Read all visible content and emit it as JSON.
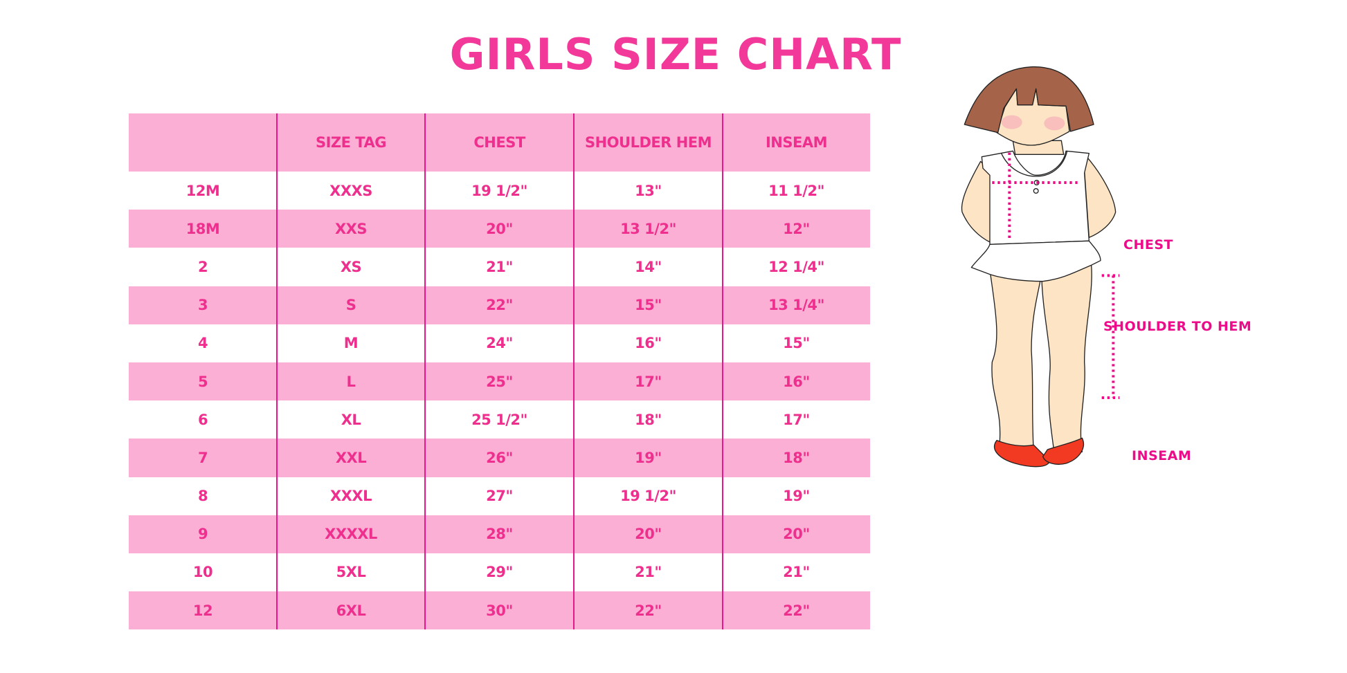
{
  "title": "GIRLS SIZE CHART",
  "colors": {
    "accent": "#f2399a",
    "row_pink": "#fcafd4",
    "divider": "#e8168c",
    "hair": "#a5634a",
    "skin": "#fce4c4",
    "shoes": "#f23a22"
  },
  "table": {
    "headers": [
      "",
      "SIZE TAG",
      "CHEST",
      "SHOULDER HEM",
      "INSEAM"
    ],
    "rows": [
      [
        "12M",
        "XXXS",
        "19 1/2\"",
        "13\"",
        "11 1/2\""
      ],
      [
        "18M",
        "XXS",
        "20\"",
        "13 1/2\"",
        "12\""
      ],
      [
        "2",
        "XS",
        "21\"",
        "14\"",
        "12 1/4\""
      ],
      [
        "3",
        "S",
        "22\"",
        "15\"",
        "13 1/4\""
      ],
      [
        "4",
        "M",
        "24\"",
        "16\"",
        "15\""
      ],
      [
        "5",
        "L",
        "25\"",
        "17\"",
        "16\""
      ],
      [
        "6",
        "XL",
        "25 1/2\"",
        "18\"",
        "17\""
      ],
      [
        "7",
        "XXL",
        "26\"",
        "19\"",
        "18\""
      ],
      [
        "8",
        "XXXL",
        "27\"",
        "19 1/2\"",
        "19\""
      ],
      [
        "9",
        "XXXXL",
        "28\"",
        "20\"",
        "20\""
      ],
      [
        "10",
        "5XL",
        "29\"",
        "21\"",
        "21\""
      ],
      [
        "12",
        "6XL",
        "30\"",
        "22\"",
        "22\""
      ]
    ]
  },
  "diagram": {
    "labels": {
      "chest": "CHEST",
      "shoulder_to_hem": "SHOULDER TO HEM",
      "inseam": "INSEAM"
    }
  }
}
